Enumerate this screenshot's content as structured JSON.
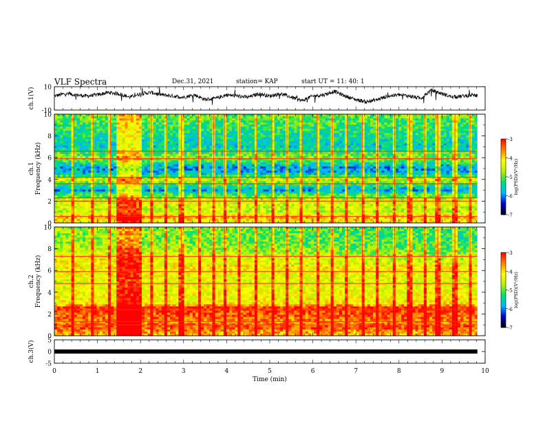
{
  "header": {
    "title": "VLF Spectra",
    "date": "Dec.31, 2021",
    "station": "station= KAP",
    "start_time": "start  UT =   11: 40: 1"
  },
  "chart_data": [
    {
      "id": "ch1-waveform",
      "type": "line",
      "ylabel": "ch.1(V)",
      "ylim": [
        -10,
        10
      ],
      "yticks": [
        10,
        -10
      ],
      "xlim": [
        0,
        10
      ],
      "x": [
        0,
        0.25,
        0.5,
        0.75,
        1,
        1.25,
        1.5,
        1.75,
        2,
        2.25,
        2.5,
        2.75,
        3,
        3.25,
        3.5,
        3.75,
        4,
        4.25,
        4.5,
        4.75,
        5,
        5.25,
        5.5,
        5.75,
        6,
        6.25,
        6.5,
        6.75,
        7,
        7.25,
        7.5,
        7.75,
        8,
        8.25,
        8.5,
        8.75,
        9,
        9.25,
        9.5,
        9.75,
        9.82
      ],
      "y": [
        2,
        4,
        3,
        2,
        3,
        5,
        4,
        1,
        4,
        5,
        3,
        2,
        1,
        3,
        -1,
        0,
        3,
        2,
        1,
        4,
        2,
        4,
        1,
        -2,
        2,
        3,
        6,
        2,
        -1,
        -3,
        -1,
        2,
        3,
        2,
        0,
        7,
        4,
        1,
        2,
        3,
        2
      ]
    },
    {
      "id": "ch1-spectrogram",
      "type": "heatmap",
      "ylabel": "ch.1\nFrequency (kHz)",
      "ylim": [
        0,
        10
      ],
      "yticks": [
        0,
        2,
        4,
        6,
        8,
        10
      ],
      "xlim": [
        0,
        10
      ],
      "data_xmax": 9.82,
      "colorbar": {
        "label": "log(PSD)(V²/Hz)",
        "ticks": [
          -3,
          -4,
          -5,
          -6,
          -7
        ],
        "range": [
          -7,
          -3
        ]
      },
      "burst_x": [
        1.42,
        2.05
      ],
      "freq_profile": [
        {
          "f": 0,
          "v": -4.3
        },
        {
          "f": 0.5,
          "v": -3.8
        },
        {
          "f": 1,
          "v": -4.6
        },
        {
          "f": 2,
          "v": -4.4
        },
        {
          "f": 2.5,
          "v": -5.0
        },
        {
          "f": 3,
          "v": -5.9
        },
        {
          "f": 3.5,
          "v": -5.3
        },
        {
          "f": 4,
          "v": -4.5
        },
        {
          "f": 4.5,
          "v": -5.6
        },
        {
          "f": 5,
          "v": -6.0
        },
        {
          "f": 5.5,
          "v": -5.4
        },
        {
          "f": 6,
          "v": -4.8
        },
        {
          "f": 6.5,
          "v": -5.2
        },
        {
          "f": 7,
          "v": -5.6
        },
        {
          "f": 8,
          "v": -5.4
        },
        {
          "f": 9,
          "v": -5.2
        },
        {
          "f": 10,
          "v": -5.0
        }
      ],
      "lines_khz": [
        0.6,
        2.0,
        2.3,
        3.6,
        4.2,
        5.9,
        6.6
      ],
      "sferic_times_min": [
        0.45,
        0.9,
        1.3,
        2.25,
        2.6,
        2.95,
        3.35,
        3.7,
        3.95,
        4.3,
        4.7,
        5.05,
        5.4,
        5.75,
        6.1,
        6.45,
        6.8,
        7.15,
        7.5,
        7.9,
        8.25,
        8.6,
        8.9,
        9.3,
        9.65
      ]
    },
    {
      "id": "ch2-spectrogram",
      "type": "heatmap",
      "ylabel": "ch.2\nFrequency (kHz)",
      "ylim": [
        0,
        10
      ],
      "yticks": [
        0,
        2,
        4,
        6,
        8,
        10
      ],
      "xlim": [
        0,
        10
      ],
      "data_xmax": 9.82,
      "colorbar": {
        "label": "log(PSD)(V²/Hz)",
        "ticks": [
          -3,
          -4,
          -5,
          -6,
          -7
        ],
        "range": [
          -7,
          -3
        ]
      },
      "burst_x": [
        1.42,
        2.05
      ],
      "freq_profile": [
        {
          "f": 0,
          "v": -4.0
        },
        {
          "f": 0.8,
          "v": -3.3
        },
        {
          "f": 1.2,
          "v": -3.6
        },
        {
          "f": 2,
          "v": -3.4
        },
        {
          "f": 2.6,
          "v": -3.2
        },
        {
          "f": 3,
          "v": -4.2
        },
        {
          "f": 4,
          "v": -4.3
        },
        {
          "f": 5,
          "v": -4.4
        },
        {
          "f": 6,
          "v": -4.2
        },
        {
          "f": 7,
          "v": -4.1
        },
        {
          "f": 8,
          "v": -4.6
        },
        {
          "f": 9,
          "v": -4.8
        },
        {
          "f": 10,
          "v": -4.7
        }
      ],
      "lines_khz": [
        1.0,
        1.3,
        2.4,
        4.8,
        5.9,
        7.3
      ],
      "sferic_times_min": [
        0.45,
        0.9,
        1.3,
        2.25,
        2.6,
        2.95,
        3.35,
        3.7,
        3.95,
        4.3,
        4.7,
        5.05,
        5.4,
        5.75,
        6.1,
        6.45,
        6.8,
        7.15,
        7.5,
        7.9,
        8.25,
        8.6,
        8.9,
        9.3,
        9.65
      ]
    },
    {
      "id": "ch3-waveform",
      "type": "line",
      "ylabel": "ch.3(V)",
      "ylim": [
        -5,
        5
      ],
      "yticks": [
        5,
        0,
        -5
      ],
      "xlim": [
        0,
        10
      ],
      "x": [
        0,
        9.82
      ],
      "y": [
        0,
        0
      ]
    }
  ],
  "x_axis": {
    "label": "Time  (min)",
    "ticks": [
      0,
      1,
      2,
      3,
      4,
      5,
      6,
      7,
      8,
      9,
      10
    ]
  },
  "colors": {
    "line": "#000000",
    "colormap": [
      "#000000",
      "#0000cc",
      "#00b7ff",
      "#00e070",
      "#b8f000",
      "#ffff00",
      "#ff8000",
      "#ff0000",
      "#ffffff"
    ]
  }
}
